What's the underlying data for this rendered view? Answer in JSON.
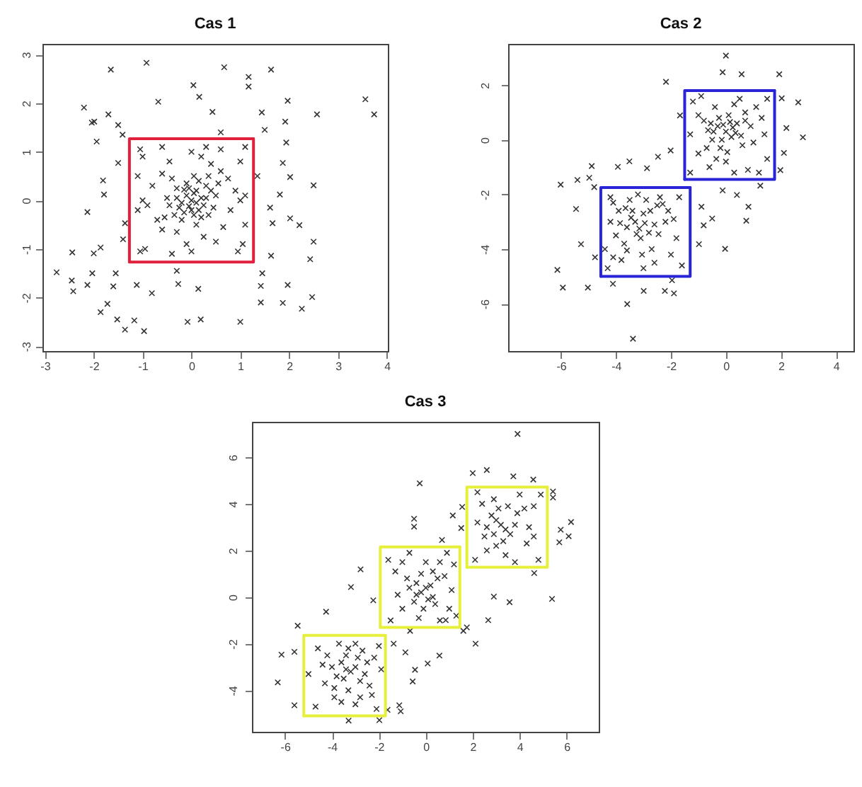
{
  "chart_data": [
    {
      "type": "scatter",
      "title": "Cas 1",
      "xlim": [
        -3.05,
        4.02
      ],
      "ylim": [
        -3.1,
        3.22
      ],
      "xticks": [
        -3,
        -2,
        -1,
        0,
        1,
        2,
        3,
        4
      ],
      "yticks": [
        -3,
        -2,
        -1,
        0,
        1,
        2,
        3
      ],
      "series": [
        {
          "color": "#333333",
          "marker": "cross",
          "x": [
            -0.92,
            -1.65,
            0.67,
            1.63,
            1.17,
            1.17,
            0.04,
            0.16,
            1.97,
            3.56,
            3.74,
            2.57,
            -2.2,
            -1.99,
            -2.04,
            -1.7,
            -1.94,
            -0.68,
            0.43,
            1.44,
            1.92,
            1.94,
            1.87,
            2.02,
            2.5,
            1.81,
            1.61,
            1.66,
            2.02,
            2.21,
            2.5,
            2.43,
            1.63,
            1.42,
            1.42,
            1.97,
            1.87,
            2.26,
            2.47,
            1,
            0.19,
            -0.08,
            -0.27,
            0.14,
            -0.97,
            -1.36,
            -1.17,
            -1.52,
            -1.86,
            -1.72,
            -1.6,
            -2.13,
            -2.42,
            -2.45,
            -2.76,
            -2.44,
            -2.03,
            -1.86,
            -2,
            -2.13,
            -1.81,
            -1.79,
            -1.5,
            -1.41,
            -1.36,
            -1.12,
            -0.81,
            1.35,
            -1.4,
            0.6,
            -0.3,
            1.5,
            -1.5,
            1.45,
            -1.55,
            0,
            0.1,
            -0.1,
            0.05,
            -0.05,
            0.2,
            -0.2,
            0.15,
            -0.15,
            0.3,
            -0.3,
            0.35,
            -0.35,
            0.5,
            -0.5,
            0.05,
            0.1,
            0.6,
            -0.6,
            0.65,
            -0.6,
            0.9,
            -0.9,
            0.2,
            -0.1,
            1,
            -1,
            1.05,
            -0.95,
            1.1,
            -1.1,
            0.3,
            -0.4,
            0.8,
            -0.8,
            0.4,
            -0.45,
            0.5,
            -0.7,
            0.75,
            -1.1,
            1.1,
            0.6,
            -0.6,
            0.95,
            -0.3,
            0.25,
            -1.05,
            1.1,
            -1.05,
            0,
            0,
            1,
            -1,
            0.05,
            -0.25,
            0.25,
            -0.1,
            0.4,
            -0.4,
            0.15,
            -0.2,
            0.45,
            -0.45,
            0.2,
            -0.05,
            0.3,
            -0.3,
            0,
            0.1,
            -0.15,
            0.55,
            -0.55,
            0.35
          ],
          "values": [
            2.83,
            2.69,
            2.74,
            2.69,
            2.54,
            2.34,
            2.37,
            2.13,
            2.05,
            2.08,
            1.77,
            1.77,
            1.91,
            1.62,
            1.6,
            1.77,
            1.21,
            2.03,
            1.82,
            1.81,
            1.62,
            1.19,
            0.77,
            0.48,
            0.31,
            0.12,
            -0.15,
            -0.47,
            -0.37,
            -0.51,
            -0.85,
            -1.21,
            -1.14,
            -1.76,
            -2.1,
            -1.74,
            -2.11,
            -2.23,
            -1.99,
            -2.5,
            -2.45,
            -2.5,
            -1.72,
            -1.82,
            -2.69,
            -2.66,
            -2.47,
            -2.45,
            -2.3,
            -2.13,
            -1.77,
            -1.74,
            -1.87,
            -1.65,
            -1.48,
            -1.07,
            -1.5,
            -0.97,
            -1.09,
            -0.24,
            0.41,
            0.12,
            0.77,
            1.35,
            -0.47,
            -1.74,
            -1.91,
            0.5,
            -0.8,
            1.4,
            -1.45,
            1.45,
            1.55,
            -1.5,
            -1.5,
            0,
            -0.05,
            0.1,
            0.15,
            -0.12,
            0.05,
            -0.05,
            -0.2,
            0.22,
            0.3,
            0.25,
            -0.3,
            -0.3,
            0.1,
            0.05,
            0.5,
            -0.5,
            0.6,
            0.55,
            -0.55,
            -0.6,
            0.2,
            -0.1,
            0.9,
            -0.9,
            0.8,
            0.9,
            -0.9,
            -1,
            0.1,
            -0.2,
            1.1,
            -1.1,
            -0.2,
            0.3,
            0.75,
            0.8,
            -0.85,
            -0.4,
            0.45,
            0.5,
            -0.5,
            1.05,
            1.1,
            -1.05,
            -0.65,
            -0.75,
            1.05,
            1.1,
            -1.05,
            1,
            -1.05,
            0,
            0,
            -0.3,
            -0.15,
            -0.1,
            0.35,
            0.2,
            0.45,
            0.4,
            -0.4,
            -0.15,
            -0.1,
            -0.35,
            0.25,
            0.05,
            0.05,
            -0.2,
            0.2,
            -0.25,
            0.35,
            -0.35,
            0.5
          ]
        },
        {
          "type": "line",
          "color": "#e0203c",
          "x": [
            -1.27,
            1.27,
            1.27
          ],
          "values": [
            -1.27,
            -1.27,
            1.27
          ]
        },
        {
          "type": "line",
          "color": "#e0203c",
          "x": [
            1.27,
            -1.27,
            -1.27
          ],
          "values": [
            1.27,
            1.27,
            -1.27
          ]
        }
      ]
    },
    {
      "type": "scatter",
      "title": "Cas 2",
      "xlim": [
        -7.92,
        4.64
      ],
      "ylim": [
        -7.73,
        3.51
      ],
      "xticks": [
        -6,
        -4,
        -2,
        0,
        2,
        4
      ],
      "yticks": [
        -6,
        -4,
        -2,
        0,
        2
      ],
      "series": [
        {
          "color": "#333333",
          "marker": "cross",
          "x": [
            0,
            -0.12,
            0.57,
            1.94,
            -2.18,
            2.63,
            2.8,
            2.03,
            2.2,
            2.11,
            1.98,
            -1.67,
            -2.01,
            -2.47,
            -2.87,
            -4.88,
            -3.93,
            -3.51,
            -6.01,
            -5.4,
            -4.97,
            -4.79,
            -5.45,
            -5.27,
            -4.76,
            -6.13,
            -5.93,
            -5.02,
            -4.11,
            -3.59,
            -3.38,
            -2.99,
            -2.22,
            -1.89,
            -1.96,
            -0.98,
            -0.5,
            -0.03,
            0.74,
            0.82,
            0.4,
            -0.12,
            -0.89,
            -0.81,
            1.25,
            0,
            0.2,
            -0.3,
            0.4,
            -0.5,
            0.1,
            -0.2,
            0.6,
            -0.8,
            0.9,
            -1,
            1.1,
            -1.2,
            0.5,
            -0.6,
            0.8,
            1.4,
            -1.3,
            0,
            1.5,
            -0.9,
            1.5,
            0.3,
            -0.4,
            1.2,
            -1.3,
            0.7,
            -0.1,
            0.35,
            -0.65,
            -3.3,
            -3,
            -3.6,
            -2.8,
            -3.9,
            -3.1,
            -2.5,
            -4,
            -2.2,
            -3.5,
            -4.2,
            -1.7,
            -4.3,
            -1.6,
            -2,
            -3.8,
            -2.7,
            -4.2,
            -1.8,
            -3.2,
            -2.4,
            -3,
            -4.4,
            -2.9,
            -3.4,
            -2.6,
            -3.7,
            -2.1,
            -0.15,
            0.25,
            -0.45,
            0.55,
            -0.25,
            0.05,
            0.7,
            -0.7,
            1,
            -1,
            0.3,
            -0.35,
            1.3,
            0.15,
            -0.55,
            -3.15,
            -3.45,
            -2.95,
            -3.65,
            -2.75,
            -3.25,
            -3.85,
            -2.45,
            -3.05,
            -4.1,
            -2.3,
            -3.6,
            -1.9,
            -4.1,
            -2.6
          ],
          "values": [
            3.08,
            2.47,
            2.4,
            2.4,
            2.12,
            1.37,
            0.09,
            1.52,
            0.43,
            -0.48,
            -1.11,
            0.89,
            -0.39,
            -0.62,
            -1.04,
            -0.96,
            -0.99,
            -0.79,
            -1.64,
            -1.47,
            -1.39,
            -1.73,
            -2.53,
            -3.82,
            -4.3,
            -4.76,
            -5.41,
            -5.41,
            -5.27,
            -6.01,
            -7.28,
            -5.53,
            -5.53,
            -5.62,
            -5.14,
            -3.82,
            -2.88,
            -3.99,
            -2.96,
            -2.45,
            -2.02,
            -1.85,
            -2.45,
            -3.13,
            -1.68,
            0.3,
            0.1,
            0.5,
            0.6,
            0,
            0.9,
            -0.3,
            -0.2,
            0.7,
            0.5,
            -0.5,
            1.2,
            1.4,
            1.5,
            -1,
            -1.1,
            0.2,
            0.2,
            -0.8,
            -0.7,
            1.6,
            1.5,
            -1.2,
            1.2,
            -1.2,
            -1.2,
            1,
            0.55,
            0.25,
            0.35,
            -3,
            -2.7,
            -3.2,
            -3.4,
            -2.6,
            -3.6,
            -2.4,
            -3.5,
            -3,
            -2.2,
            -2.1,
            -2.1,
            -4.7,
            -4.6,
            -4.2,
            -4.4,
            -4,
            -3,
            -3.6,
            -2,
            -2.1,
            -4.7,
            -4,
            -2.2,
            -2.6,
            -3.1,
            -3.8,
            -2.6,
            0,
            0.45,
            0.3,
            0.15,
            0.8,
            -0.45,
            0.7,
            -0.3,
            -0.1,
            0.9,
            1.3,
            -0.7,
            0.8,
            0.65,
            0.6,
            -3.25,
            -2.85,
            -3.05,
            -2.5,
            -2.6,
            -3.45,
            -3.05,
            -3.45,
            -4.2,
            -2.3,
            -2.35,
            -4.05,
            -2.9,
            -4.3,
            -4.5
          ]
        },
        {
          "type": "line",
          "color": "#2a24d8",
          "x": [
            -1.5,
            1.77,
            1.77
          ],
          "values": [
            -1.45,
            -1.45,
            1.8
          ]
        },
        {
          "type": "line",
          "color": "#2a24d8",
          "x": [
            1.77,
            -1.5,
            -1.5
          ],
          "values": [
            1.8,
            1.8,
            -1.45
          ]
        },
        {
          "type": "line",
          "color": "#2a24d8",
          "x": [
            -4.55,
            -1.3,
            -1.3
          ],
          "values": [
            -5,
            -5,
            -1.75
          ]
        },
        {
          "type": "line",
          "color": "#2a24d8",
          "x": [
            -1.3,
            -4.55,
            -4.55
          ],
          "values": [
            -1.75,
            -1.75,
            -5
          ]
        }
      ]
    },
    {
      "type": "scatter",
      "title": "Cas 3",
      "xlim": [
        -7.41,
        7.37
      ],
      "ylim": [
        -5.78,
        7.52
      ],
      "xticks": [
        -6,
        -4,
        -2,
        0,
        2,
        4,
        6
      ],
      "yticks": [
        -4,
        -2,
        0,
        2,
        4,
        6
      ],
      "series": [
        {
          "color": "#333333",
          "marker": "cross",
          "x": [
            3.91,
            -0.26,
            -0.5,
            -0.5,
            2,
            2.6,
            3.73,
            4.58,
            5.42,
            5.42,
            6.19,
            6.09,
            5.75,
            5.69,
            5.38,
            4.62,
            3.57,
            2.9,
            2.66,
            2.12,
            1.6,
            1.75,
            0.85,
            0.58,
            0.08,
            -0.46,
            -0.56,
            -1.13,
            -1.07,
            -1.63,
            -1.98,
            -3.29,
            -5.6,
            -6.31,
            -6.15,
            -5.6,
            -5.46,
            -4.25,
            -2.78,
            -3.19,
            -2.24,
            0.69,
            1.15,
            1.51,
            1.55,
            -0.67,
            -0.87,
            -1.37,
            -3.2,
            -3.6,
            -2.8,
            -4,
            -2.5,
            -3.3,
            -3.9,
            -2.3,
            -4.6,
            -2,
            -4.7,
            -2.1,
            -3,
            -4.3,
            -2.7,
            -3.5,
            -5,
            -1.9,
            -3.7,
            -3,
            -4.2,
            -2.6,
            -3.4,
            -3.9,
            -0.2,
            0.2,
            -0.5,
            0.4,
            -0.8,
            0.8,
            -1.2,
            1.1,
            0,
            -0.3,
            0.6,
            -1.5,
            1.3,
            -1.6,
            0.9,
            -0.7,
            0.3,
            -1,
            0.1,
            -0.4,
            1.2,
            -1.3,
            3.2,
            2.8,
            3.6,
            2.5,
            3.9,
            2.9,
            4.3,
            2.2,
            4.6,
            3.4,
            2.1,
            4.9,
            2.2,
            4.8,
            3,
            4,
            3.5,
            2.6,
            4.4,
            3.8,
            -3,
            -3.4,
            -2.9,
            -3.8,
            -2.4,
            -3.3,
            -4.4,
            -2.2,
            -3.6,
            -2.8,
            0,
            -0.4,
            0.3,
            -0.1,
            0.5,
            -0.7,
            -1,
            0.6,
            1,
            -0.2,
            3,
            3.4,
            3.1,
            2.6,
            3.8,
            4.2,
            2.4,
            3.3,
            4.6,
            2.9
          ],
          "values": [
            7,
            4.88,
            3.36,
            3.02,
            5.32,
            5.45,
            5.18,
            5.04,
            4.53,
            4.27,
            3.22,
            2.61,
            2.89,
            2.35,
            -0.08,
            1.03,
            -0.22,
            0.02,
            -0.99,
            -2,
            -1.45,
            -1.3,
            -0.99,
            -2.51,
            -2.85,
            -3.12,
            -3.62,
            -4.64,
            -4.9,
            -4.84,
            -5.28,
            -5.3,
            -4.64,
            -3.66,
            -2.47,
            -2.35,
            -1.23,
            -0.63,
            1.19,
            0.43,
            -0.14,
            2.45,
            3.5,
            2.96,
            3.87,
            -1.45,
            -2.37,
            -2,
            -3.2,
            -2.8,
            -3.6,
            -3,
            -2.8,
            -4,
            -4.3,
            -4.2,
            -2.2,
            -2.1,
            -4.7,
            -4.8,
            -2,
            -3.7,
            -2.3,
            -3.5,
            -3.3,
            -3.1,
            -2,
            -4.6,
            -2.5,
            -3.3,
            -2.5,
            -3.9,
            0.2,
            0.5,
            -0.2,
            -0.3,
            0.8,
            0.9,
            0.1,
            0.3,
            1.5,
            -0.9,
            -1,
            -1,
            -0.8,
            1.6,
            1.9,
            1.9,
            1.1,
            -0.5,
            -0.1,
            0.6,
            1.4,
            1.1,
            3.1,
            3.5,
            2.7,
            2.6,
            3.6,
            4.2,
            2.3,
            3.2,
            3.9,
            1.8,
            1.6,
            4.4,
            4.5,
            1.6,
            2.2,
            4.4,
            3.9,
            2,
            3,
            1.5,
            -3,
            -3.1,
            -2.6,
            -3.4,
            -3.8,
            -2.2,
            -2.9,
            -2.6,
            -4.5,
            -4.3,
            0.4,
            0.1,
            0,
            -0.5,
            0.8,
            0.4,
            1.5,
            1.5,
            -0.5,
            1,
            3.3,
            2.9,
            3.8,
            3,
            3.1,
            3.8,
            4,
            2.4,
            2.6,
            2.7
          ]
        },
        {
          "type": "line",
          "color": "#e6ef3a",
          "x": [
            -5.2,
            -1.72,
            -1.72
          ],
          "values": [
            -5.1,
            -5.1,
            -1.64
          ]
        },
        {
          "type": "line",
          "color": "#e6ef3a",
          "x": [
            -1.72,
            -5.2,
            -5.2
          ],
          "values": [
            -1.64,
            -1.64,
            -5.1
          ]
        },
        {
          "type": "line",
          "color": "#e6ef3a",
          "x": [
            -1.94,
            1.45,
            1.45
          ],
          "values": [
            -1.3,
            -1.3,
            2.15
          ]
        },
        {
          "type": "line",
          "color": "#e6ef3a",
          "x": [
            1.45,
            -1.94,
            -1.94
          ],
          "values": [
            2.15,
            2.15,
            -1.3
          ]
        },
        {
          "type": "line",
          "color": "#e6ef3a",
          "x": [
            1.75,
            5.18,
            5.18
          ],
          "values": [
            1.28,
            1.28,
            4.72
          ]
        },
        {
          "type": "line",
          "color": "#e6ef3a",
          "x": [
            5.18,
            1.75,
            1.75
          ],
          "values": [
            4.72,
            4.72,
            1.28
          ]
        }
      ]
    }
  ]
}
